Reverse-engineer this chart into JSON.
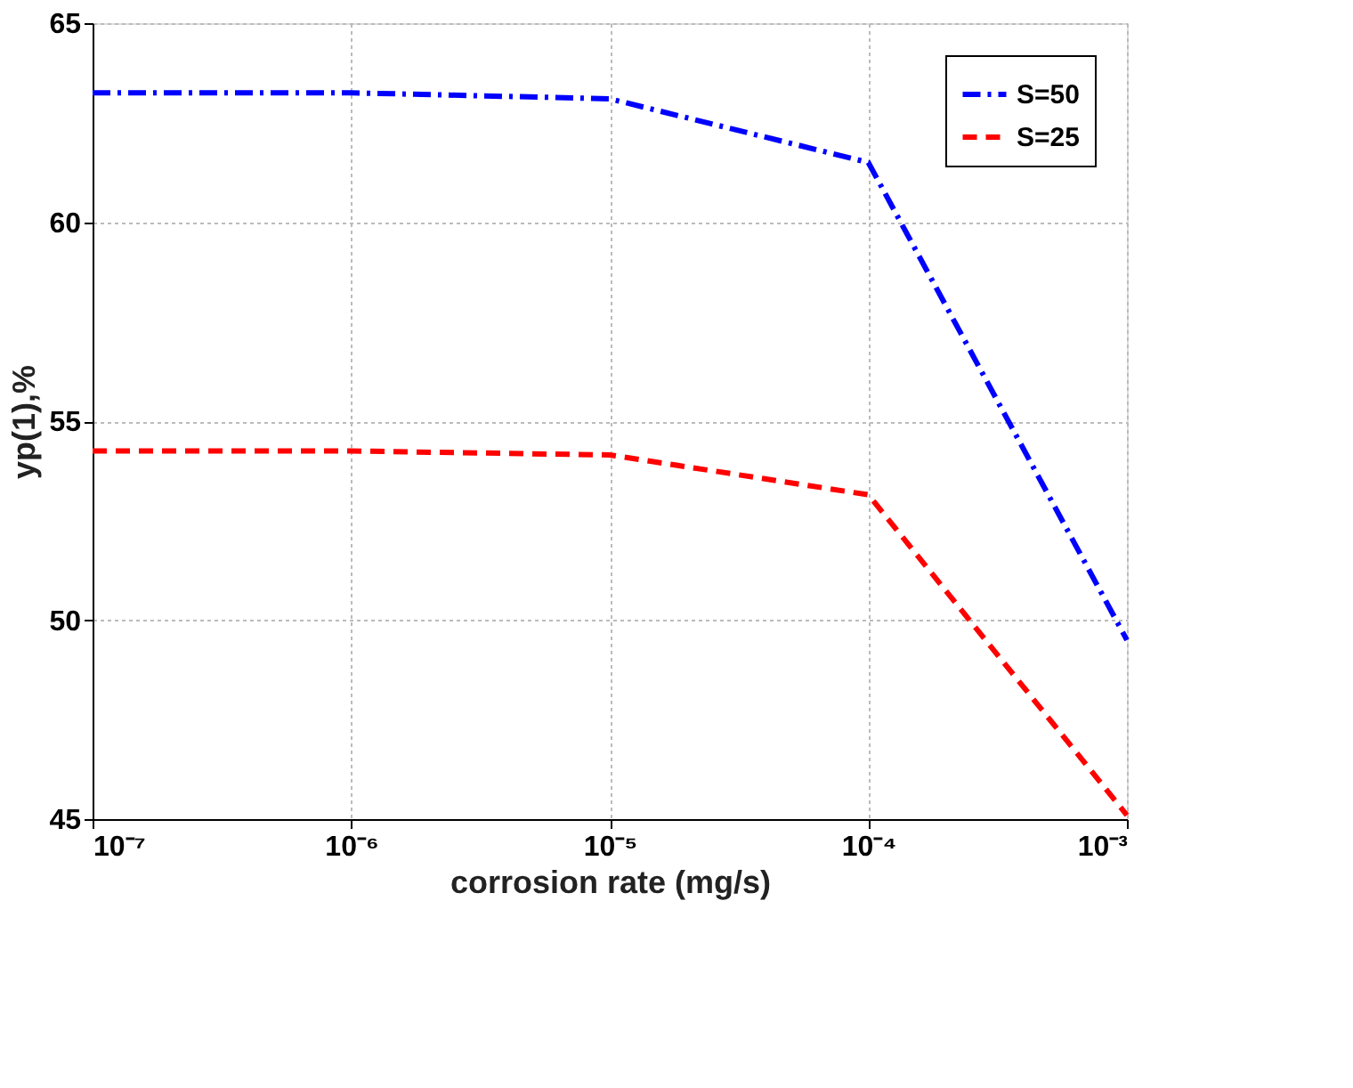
{
  "chart_data": {
    "type": "line",
    "xlabel": "corrosion rate (mg/s)",
    "ylabel": "yp(1),%",
    "log": "x",
    "x": [
      1e-07,
      1e-06,
      1e-05,
      0.0001,
      0.001
    ],
    "series": [
      {
        "name": "S=50",
        "color": "#0000ff",
        "line_style": "dashdot",
        "values": [
          63.25,
          63.25,
          63.1,
          61.5,
          49.5
        ]
      },
      {
        "name": "S=25",
        "color": "#ff0000",
        "line_style": "dashed",
        "values": [
          54.25,
          54.25,
          54.15,
          53.15,
          45.1
        ]
      }
    ],
    "xlim": [
      1e-07,
      0.001
    ],
    "xticks": [
      {
        "value": 1e-07,
        "label": "10⁻⁷"
      },
      {
        "value": 1e-06,
        "label": "10⁻⁶"
      },
      {
        "value": 1e-05,
        "label": "10⁻⁵"
      },
      {
        "value": 0.0001,
        "label": "10⁻⁴"
      },
      {
        "value": 0.001,
        "label": "10⁻³"
      }
    ],
    "ylim": [
      45,
      65
    ],
    "yticks": [
      45,
      50,
      55,
      60,
      65
    ],
    "grid": true,
    "legend": "top right",
    "marker": "none"
  }
}
